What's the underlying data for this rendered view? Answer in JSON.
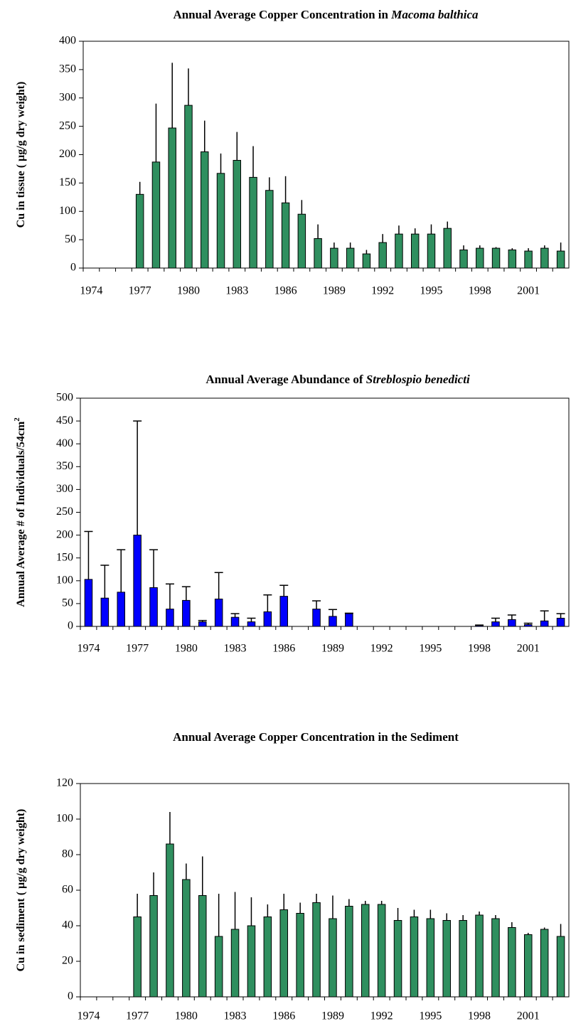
{
  "chart_data": [
    {
      "type": "bar",
      "title": "Annual Average Copper Concentration in",
      "title_species": "Macoma balthica",
      "ylabel": "Cu in tissue ( µg/g dry weight)",
      "ylabel_color": "#2e8b57",
      "color": "#2f8f5f",
      "error_caps": false,
      "categories": [
        "1974",
        null,
        null,
        "1977",
        null,
        null,
        "1980",
        null,
        null,
        "1983",
        null,
        null,
        "1986",
        null,
        null,
        "1989",
        null,
        null,
        "1992",
        null,
        null,
        "1995",
        null,
        null,
        "1998",
        null,
        null,
        "2001",
        null,
        null
      ],
      "values": [
        null,
        null,
        null,
        130,
        187,
        247,
        287,
        205,
        167,
        190,
        160,
        137,
        115,
        95,
        52,
        35,
        35,
        25,
        45,
        60,
        60,
        60,
        70,
        32,
        35,
        35,
        32,
        30,
        35,
        30
      ],
      "errors": [
        null,
        null,
        null,
        22,
        103,
        115,
        65,
        55,
        35,
        50,
        55,
        23,
        47,
        25,
        25,
        10,
        10,
        7,
        15,
        15,
        10,
        17,
        12,
        8,
        5,
        2,
        3,
        5,
        5,
        15
      ],
      "ylim": [
        0,
        400
      ],
      "yticks": [
        0,
        50,
        100,
        150,
        200,
        250,
        300,
        350,
        400
      ]
    },
    {
      "type": "bar",
      "title": "Annual Average Abundance of",
      "title_species": "Streblospio benedicti",
      "ylabel": "Annual Average # of Individuals/54cm",
      "ylabel_sup": "2",
      "ylabel_color": "#0000ff",
      "color": "#0000ff",
      "error_caps": true,
      "categories": [
        "1974",
        null,
        null,
        "1977",
        null,
        null,
        "1980",
        null,
        null,
        "1983",
        null,
        null,
        "1986",
        null,
        null,
        "1989",
        null,
        null,
        "1992",
        null,
        null,
        "1995",
        null,
        null,
        "1998",
        null,
        null,
        "2001",
        null,
        null
      ],
      "values": [
        103,
        62,
        75,
        200,
        85,
        38,
        57,
        10,
        60,
        20,
        10,
        32,
        66,
        null,
        38,
        22,
        28,
        null,
        null,
        null,
        null,
        null,
        null,
        null,
        2,
        10,
        15,
        4,
        12,
        18
      ],
      "errors": [
        105,
        72,
        93,
        250,
        83,
        55,
        30,
        3,
        58,
        8,
        8,
        37,
        24,
        null,
        18,
        15,
        1,
        null,
        null,
        null,
        null,
        null,
        null,
        null,
        1,
        8,
        10,
        3,
        22,
        10
      ],
      "ylim": [
        0,
        500
      ],
      "yticks": [
        0,
        50,
        100,
        150,
        200,
        250,
        300,
        350,
        400,
        450,
        500
      ]
    },
    {
      "type": "bar",
      "title": "Annual Average Copper Concentration in the Sediment",
      "ylabel": "Cu in sediment ( µg/g dry weight)",
      "ylabel_color": "#2e8b57",
      "color": "#2f8f5f",
      "error_caps": false,
      "categories": [
        "1974",
        null,
        null,
        "1977",
        null,
        null,
        "1980",
        null,
        null,
        "1983",
        null,
        null,
        "1986",
        null,
        null,
        "1989",
        null,
        null,
        "1992",
        null,
        null,
        "1995",
        null,
        null,
        "1998",
        null,
        null,
        "2001",
        null,
        null
      ],
      "values": [
        null,
        null,
        null,
        45,
        57,
        86,
        66,
        57,
        34,
        38,
        40,
        45,
        49,
        47,
        53,
        44,
        51,
        52,
        52,
        43,
        45,
        44,
        43,
        43,
        46,
        44,
        39,
        35,
        38,
        34
      ],
      "errors": [
        null,
        null,
        null,
        13,
        13,
        18,
        9,
        22,
        24,
        21,
        16,
        7,
        9,
        6,
        5,
        13,
        4,
        2,
        2,
        7,
        4,
        5,
        4,
        3,
        2,
        2,
        3,
        1,
        1,
        7
      ],
      "ylim": [
        0,
        120
      ],
      "yticks": [
        0,
        20,
        40,
        60,
        80,
        100,
        120
      ]
    }
  ]
}
